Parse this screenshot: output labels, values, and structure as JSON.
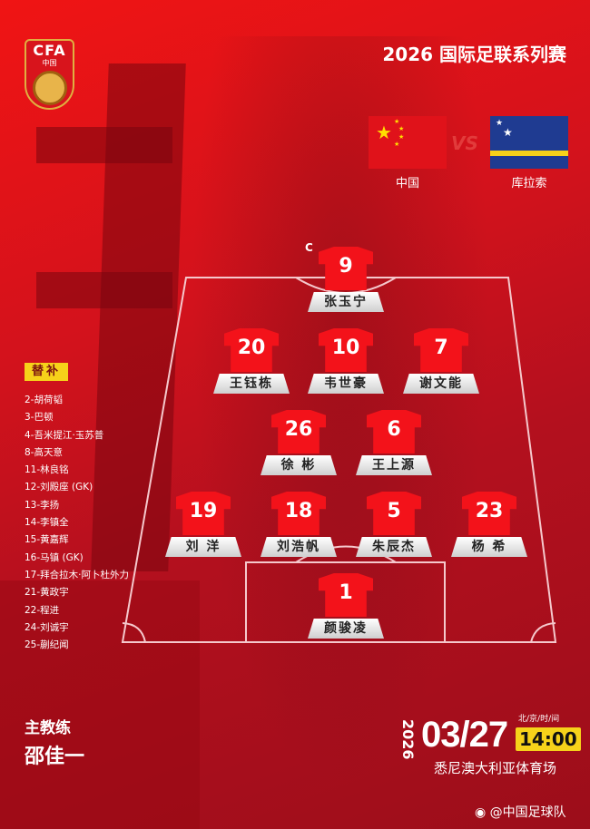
{
  "logo": {
    "text": "CFA",
    "sub": "中国"
  },
  "title": "2026 国际足联系列赛",
  "teams": {
    "home": "中国",
    "away": "库拉索",
    "vs": "VS"
  },
  "captain_mark": "C",
  "lineup": [
    {
      "number": "9",
      "name": "张玉宁",
      "captain": true
    },
    {
      "number": "20",
      "name": "王钰栋"
    },
    {
      "number": "10",
      "name": "韦世豪"
    },
    {
      "number": "7",
      "name": "谢文能"
    },
    {
      "number": "26",
      "name": "徐 彬"
    },
    {
      "number": "6",
      "name": "王上源"
    },
    {
      "number": "19",
      "name": "刘 洋"
    },
    {
      "number": "18",
      "name": "刘浩帆"
    },
    {
      "number": "5",
      "name": "朱辰杰"
    },
    {
      "number": "23",
      "name": "杨 希"
    },
    {
      "number": "1",
      "name": "颜骏凌"
    }
  ],
  "subs_label": "替补",
  "subs": [
    "2-胡荷韬",
    "3-巴顿",
    "4-吾米提江·玉苏普",
    "8-高天意",
    "11-林良铭",
    "12-刘殿座 (GK)",
    "13-李扬",
    "14-李镇全",
    "15-黄嘉辉",
    "16-马镇 (GK)",
    "17-拜合拉木·阿卜杜外力",
    "21-黄政宇",
    "22-程进",
    "24-刘诚宇",
    "25-蒯纪闻"
  ],
  "coach": {
    "label": "主教练",
    "name": "邵佳一"
  },
  "match": {
    "year": "2026",
    "date": "03/27",
    "time_label": "北/京/时/间",
    "time": "14:00",
    "venue": "悉尼澳大利亚体育场"
  },
  "weibo": "@中国足球队",
  "colors": {
    "primary": "#d3121c",
    "accent": "#f6d21a"
  }
}
